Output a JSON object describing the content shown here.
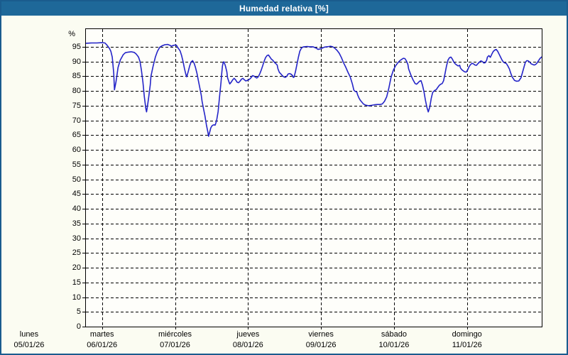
{
  "window": {
    "title": "Humedad relativa [%]"
  },
  "colors": {
    "titlebar_bg": "#1e6899",
    "window_border": "#1a5c8e",
    "chart_bg": "#fbfcf2",
    "plot_bg": "#fefefa",
    "grid": "#000000",
    "line": "#2424c8",
    "text": "#000000"
  },
  "chart_data": {
    "type": "line",
    "title": "Humedad relativa [%]",
    "ylabel": "%",
    "xlabel": "",
    "legend": "none",
    "grid": "dashed",
    "y_range": [
      0,
      101
    ],
    "y_ticks": [
      0,
      5,
      10,
      15,
      20,
      25,
      30,
      35,
      40,
      45,
      50,
      55,
      60,
      65,
      70,
      75,
      80,
      85,
      90,
      95
    ],
    "x_range": [
      0.779,
      7.024
    ],
    "x_grid_days": [
      1,
      2,
      3,
      4,
      5,
      6
    ],
    "x_ticks": [
      {
        "day": "lunes",
        "date": "05/01/26",
        "d": 0
      },
      {
        "day": "martes",
        "date": "06/01/26",
        "d": 1
      },
      {
        "day": "miércoles",
        "date": "07/01/26",
        "d": 2
      },
      {
        "day": "jueves",
        "date": "08/01/26",
        "d": 3
      },
      {
        "day": "viernes",
        "date": "09/01/26",
        "d": 4
      },
      {
        "day": "sábado",
        "date": "10/01/26",
        "d": 5
      },
      {
        "day": "domingo",
        "date": "11/01/26",
        "d": 6
      }
    ],
    "series": [
      {
        "name": "Humedad relativa",
        "color": "#2424c8",
        "points": [
          [
            0.78,
            96.2
          ],
          [
            0.86,
            96.3
          ],
          [
            0.93,
            96.3
          ],
          [
            1.0,
            96.4
          ],
          [
            1.04,
            96.3
          ],
          [
            1.07,
            95.5
          ],
          [
            1.1,
            94.5
          ],
          [
            1.12,
            93.5
          ],
          [
            1.14,
            91.5
          ],
          [
            1.16,
            86.0
          ],
          [
            1.17,
            80.4
          ],
          [
            1.19,
            83.0
          ],
          [
            1.22,
            88.0
          ],
          [
            1.25,
            90.5
          ],
          [
            1.29,
            92.3
          ],
          [
            1.32,
            93.0
          ],
          [
            1.36,
            93.2
          ],
          [
            1.4,
            93.3
          ],
          [
            1.44,
            93.1
          ],
          [
            1.47,
            92.5
          ],
          [
            1.5,
            91.5
          ],
          [
            1.52,
            90.0
          ],
          [
            1.54,
            87.0
          ],
          [
            1.56,
            83.0
          ],
          [
            1.58,
            78.0
          ],
          [
            1.6,
            74.0
          ],
          [
            1.61,
            72.9
          ],
          [
            1.62,
            74.5
          ],
          [
            1.64,
            78.0
          ],
          [
            1.66,
            82.0
          ],
          [
            1.67,
            85.0
          ],
          [
            1.7,
            88.5
          ],
          [
            1.73,
            91.5
          ],
          [
            1.76,
            93.5
          ],
          [
            1.79,
            94.8
          ],
          [
            1.82,
            95.3
          ],
          [
            1.86,
            95.7
          ],
          [
            1.9,
            95.8
          ],
          [
            1.93,
            95.5
          ],
          [
            1.95,
            95.2
          ],
          [
            1.97,
            95.4
          ],
          [
            2.0,
            95.6
          ],
          [
            2.02,
            95.5
          ],
          [
            2.03,
            95.0
          ],
          [
            2.05,
            94.3
          ],
          [
            2.07,
            93.6
          ],
          [
            2.09,
            92.0
          ],
          [
            2.11,
            90.0
          ],
          [
            2.13,
            87.5
          ],
          [
            2.15,
            85.5
          ],
          [
            2.16,
            84.8
          ],
          [
            2.18,
            86.5
          ],
          [
            2.2,
            88.5
          ],
          [
            2.22,
            89.8
          ],
          [
            2.24,
            90.3
          ],
          [
            2.26,
            89.5
          ],
          [
            2.28,
            88.0
          ],
          [
            2.3,
            86.0
          ],
          [
            2.32,
            83.5
          ],
          [
            2.34,
            81.0
          ],
          [
            2.36,
            78.5
          ],
          [
            2.37,
            76.5
          ],
          [
            2.39,
            74.0
          ],
          [
            2.41,
            71.5
          ],
          [
            2.43,
            68.5
          ],
          [
            2.45,
            66.0
          ],
          [
            2.46,
            64.6
          ],
          [
            2.47,
            65.5
          ],
          [
            2.49,
            67.5
          ],
          [
            2.51,
            68.3
          ],
          [
            2.53,
            68.5
          ],
          [
            2.55,
            68.4
          ],
          [
            2.57,
            70.0
          ],
          [
            2.59,
            73.0
          ],
          [
            2.61,
            78.0
          ],
          [
            2.63,
            83.0
          ],
          [
            2.64,
            86.0
          ],
          [
            2.65,
            88.5
          ],
          [
            2.66,
            89.7
          ],
          [
            2.67,
            89.9
          ],
          [
            2.69,
            88.5
          ],
          [
            2.71,
            86.5
          ],
          [
            2.72,
            84.5
          ],
          [
            2.74,
            83.0
          ],
          [
            2.75,
            82.4
          ],
          [
            2.77,
            83.0
          ],
          [
            2.79,
            83.8
          ],
          [
            2.81,
            84.3
          ],
          [
            2.83,
            83.8
          ],
          [
            2.85,
            83.0
          ],
          [
            2.87,
            82.8
          ],
          [
            2.89,
            83.3
          ],
          [
            2.91,
            84.0
          ],
          [
            2.93,
            84.3
          ],
          [
            2.95,
            83.8
          ],
          [
            2.97,
            83.4
          ],
          [
            2.99,
            83.6
          ],
          [
            3.01,
            83.8
          ],
          [
            3.03,
            84.2
          ],
          [
            3.05,
            84.8
          ],
          [
            3.06,
            85.2
          ],
          [
            3.08,
            85.1
          ],
          [
            3.1,
            84.7
          ],
          [
            3.12,
            84.4
          ],
          [
            3.14,
            84.8
          ],
          [
            3.16,
            85.8
          ],
          [
            3.18,
            87.0
          ],
          [
            3.2,
            88.5
          ],
          [
            3.22,
            90.0
          ],
          [
            3.24,
            91.3
          ],
          [
            3.26,
            92.0
          ],
          [
            3.28,
            92.2
          ],
          [
            3.3,
            91.5
          ],
          [
            3.32,
            90.8
          ],
          [
            3.34,
            90.4
          ],
          [
            3.36,
            89.8
          ],
          [
            3.38,
            89.3
          ],
          [
            3.4,
            88.8
          ],
          [
            3.41,
            87.5
          ],
          [
            3.43,
            86.3
          ],
          [
            3.45,
            85.8
          ],
          [
            3.47,
            85.2
          ],
          [
            3.49,
            84.8
          ],
          [
            3.51,
            84.6
          ],
          [
            3.53,
            85.0
          ],
          [
            3.55,
            85.8
          ],
          [
            3.57,
            85.9
          ],
          [
            3.59,
            85.7
          ],
          [
            3.61,
            85.2
          ],
          [
            3.62,
            84.6
          ],
          [
            3.63,
            84.7
          ],
          [
            3.65,
            86.5
          ],
          [
            3.67,
            89.0
          ],
          [
            3.69,
            91.5
          ],
          [
            3.71,
            93.5
          ],
          [
            3.73,
            94.5
          ],
          [
            3.75,
            94.9
          ],
          [
            3.77,
            95.0
          ],
          [
            3.81,
            95.1
          ],
          [
            3.85,
            95.0
          ],
          [
            3.89,
            95.0
          ],
          [
            3.93,
            94.6
          ],
          [
            3.96,
            94.1
          ],
          [
            3.99,
            94.3
          ],
          [
            4.02,
            94.6
          ],
          [
            4.05,
            94.9
          ],
          [
            4.08,
            95.0
          ],
          [
            4.11,
            95.1
          ],
          [
            4.13,
            95.2
          ],
          [
            4.16,
            95.0
          ],
          [
            4.19,
            94.5
          ],
          [
            4.22,
            93.8
          ],
          [
            4.25,
            92.8
          ],
          [
            4.28,
            91.3
          ],
          [
            4.31,
            89.5
          ],
          [
            4.34,
            88.0
          ],
          [
            4.37,
            86.3
          ],
          [
            4.4,
            84.8
          ],
          [
            4.43,
            82.4
          ],
          [
            4.45,
            80.3
          ],
          [
            4.47,
            79.8
          ],
          [
            4.49,
            79.7
          ],
          [
            4.5,
            78.8
          ],
          [
            4.52,
            77.6
          ],
          [
            4.54,
            76.8
          ],
          [
            4.56,
            76.2
          ],
          [
            4.58,
            75.6
          ],
          [
            4.61,
            75.2
          ],
          [
            4.65,
            75.0
          ],
          [
            4.69,
            75.1
          ],
          [
            4.73,
            75.3
          ],
          [
            4.77,
            75.4
          ],
          [
            4.81,
            75.4
          ],
          [
            4.84,
            75.6
          ],
          [
            4.87,
            76.5
          ],
          [
            4.9,
            78.0
          ],
          [
            4.93,
            81.0
          ],
          [
            4.96,
            84.7
          ],
          [
            4.99,
            87.0
          ],
          [
            5.02,
            88.5
          ],
          [
            5.05,
            89.5
          ],
          [
            5.08,
            90.3
          ],
          [
            5.11,
            90.8
          ],
          [
            5.13,
            91.1
          ],
          [
            5.15,
            91.0
          ],
          [
            5.17,
            90.2
          ],
          [
            5.19,
            89.0
          ],
          [
            5.2,
            87.5
          ],
          [
            5.23,
            85.5
          ],
          [
            5.26,
            83.8
          ],
          [
            5.29,
            82.5
          ],
          [
            5.31,
            82.3
          ],
          [
            5.33,
            82.8
          ],
          [
            5.35,
            83.3
          ],
          [
            5.37,
            83.5
          ],
          [
            5.39,
            82.0
          ],
          [
            5.41,
            79.8
          ],
          [
            5.43,
            77.0
          ],
          [
            5.45,
            74.5
          ],
          [
            5.47,
            72.9
          ],
          [
            5.49,
            74.5
          ],
          [
            5.51,
            77.5
          ],
          [
            5.53,
            79.5
          ],
          [
            5.55,
            80.0
          ],
          [
            5.56,
            80.2
          ],
          [
            5.58,
            80.5
          ],
          [
            5.6,
            81.2
          ],
          [
            5.62,
            81.9
          ],
          [
            5.64,
            82.3
          ],
          [
            5.66,
            82.5
          ],
          [
            5.68,
            83.5
          ],
          [
            5.7,
            86.0
          ],
          [
            5.72,
            88.5
          ],
          [
            5.74,
            90.5
          ],
          [
            5.76,
            91.3
          ],
          [
            5.78,
            91.5
          ],
          [
            5.8,
            90.8
          ],
          [
            5.82,
            89.8
          ],
          [
            5.84,
            89.2
          ],
          [
            5.86,
            88.8
          ],
          [
            5.88,
            88.5
          ],
          [
            5.9,
            88.7
          ],
          [
            5.91,
            87.8
          ],
          [
            5.93,
            87.2
          ],
          [
            5.95,
            86.8
          ],
          [
            5.97,
            86.5
          ],
          [
            5.99,
            86.4
          ],
          [
            6.01,
            87.2
          ],
          [
            6.03,
            88.3
          ],
          [
            6.05,
            89.0
          ],
          [
            6.07,
            89.4
          ],
          [
            6.09,
            89.2
          ],
          [
            6.11,
            88.8
          ],
          [
            6.13,
            88.7
          ],
          [
            6.15,
            89.3
          ],
          [
            6.17,
            89.8
          ],
          [
            6.19,
            90.2
          ],
          [
            6.21,
            90.0
          ],
          [
            6.23,
            89.5
          ],
          [
            6.25,
            89.6
          ],
          [
            6.27,
            90.5
          ],
          [
            6.28,
            91.5
          ],
          [
            6.3,
            92.0
          ],
          [
            6.32,
            91.4
          ],
          [
            6.34,
            92.5
          ],
          [
            6.36,
            93.4
          ],
          [
            6.38,
            93.9
          ],
          [
            6.4,
            94.1
          ],
          [
            6.42,
            93.5
          ],
          [
            6.44,
            92.5
          ],
          [
            6.46,
            91.5
          ],
          [
            6.48,
            90.5
          ],
          [
            6.5,
            89.8
          ],
          [
            6.52,
            89.5
          ],
          [
            6.54,
            89.3
          ],
          [
            6.56,
            88.5
          ],
          [
            6.58,
            87.5
          ],
          [
            6.6,
            86.0
          ],
          [
            6.62,
            84.7
          ],
          [
            6.64,
            84.0
          ],
          [
            6.65,
            83.6
          ],
          [
            6.68,
            83.3
          ],
          [
            6.71,
            83.4
          ],
          [
            6.74,
            84.5
          ],
          [
            6.76,
            86.3
          ],
          [
            6.78,
            88.0
          ],
          [
            6.8,
            89.8
          ],
          [
            6.82,
            90.3
          ],
          [
            6.84,
            90.2
          ],
          [
            6.86,
            89.8
          ],
          [
            6.88,
            89.2
          ],
          [
            6.9,
            89.0
          ],
          [
            6.92,
            88.8
          ],
          [
            6.94,
            89.0
          ],
          [
            6.96,
            89.5
          ],
          [
            6.98,
            90.3
          ],
          [
            7.0,
            91.0
          ],
          [
            7.02,
            91.5
          ]
        ]
      }
    ]
  }
}
